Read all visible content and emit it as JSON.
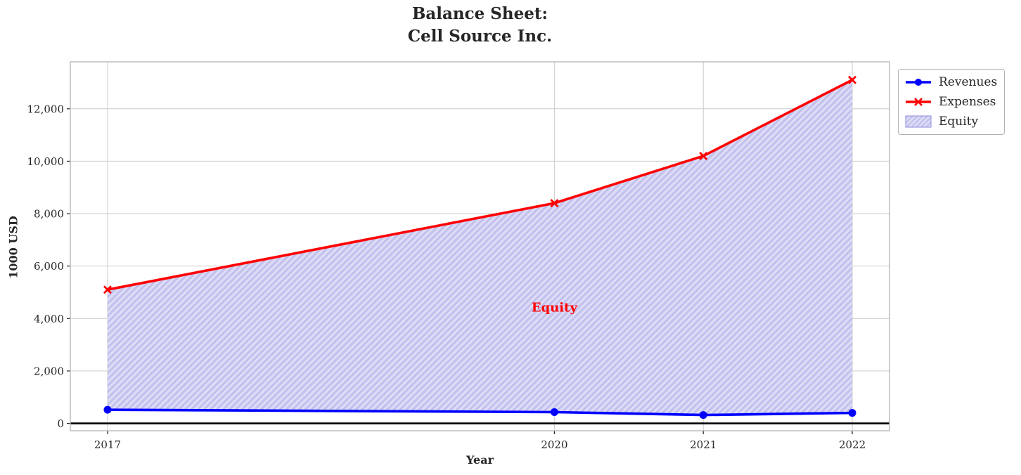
{
  "chart_data": {
    "type": "line",
    "title": "Balance Sheet:\nCell Source Inc.",
    "xlabel": "Year",
    "ylabel": "1000 USD",
    "x": [
      2017,
      2020,
      2021,
      2022
    ],
    "series": [
      {
        "name": "Revenues",
        "values": [
          520,
          430,
          320,
          400
        ],
        "color": "#0000ff",
        "marker": "circle"
      },
      {
        "name": "Expenses",
        "values": [
          5100,
          8400,
          10200,
          13100
        ],
        "color": "#ff0000",
        "marker": "x"
      }
    ],
    "area": {
      "name": "Equity",
      "between": [
        "Revenues",
        "Expenses"
      ],
      "fill": "#dddcf5",
      "hatch_color": "#c1c0ee",
      "edge": "#9b9bdf",
      "hatch_style": "/"
    },
    "annotation": {
      "text": "Equity",
      "x": 2020,
      "y": 4400,
      "color": "#ff0000"
    },
    "xticks": [
      2017,
      2020,
      2021,
      2022
    ],
    "yticks": [
      0,
      2000,
      4000,
      6000,
      8000,
      10000,
      12000
    ],
    "xlim": [
      2016.75,
      2022.25
    ],
    "ylim": [
      -280,
      13790
    ],
    "grid": true,
    "grid_color": "#cccccc",
    "spine_color": "#b3b3b3",
    "zero_line_color": "#000000",
    "legend_position": "upper right, outside plot"
  }
}
